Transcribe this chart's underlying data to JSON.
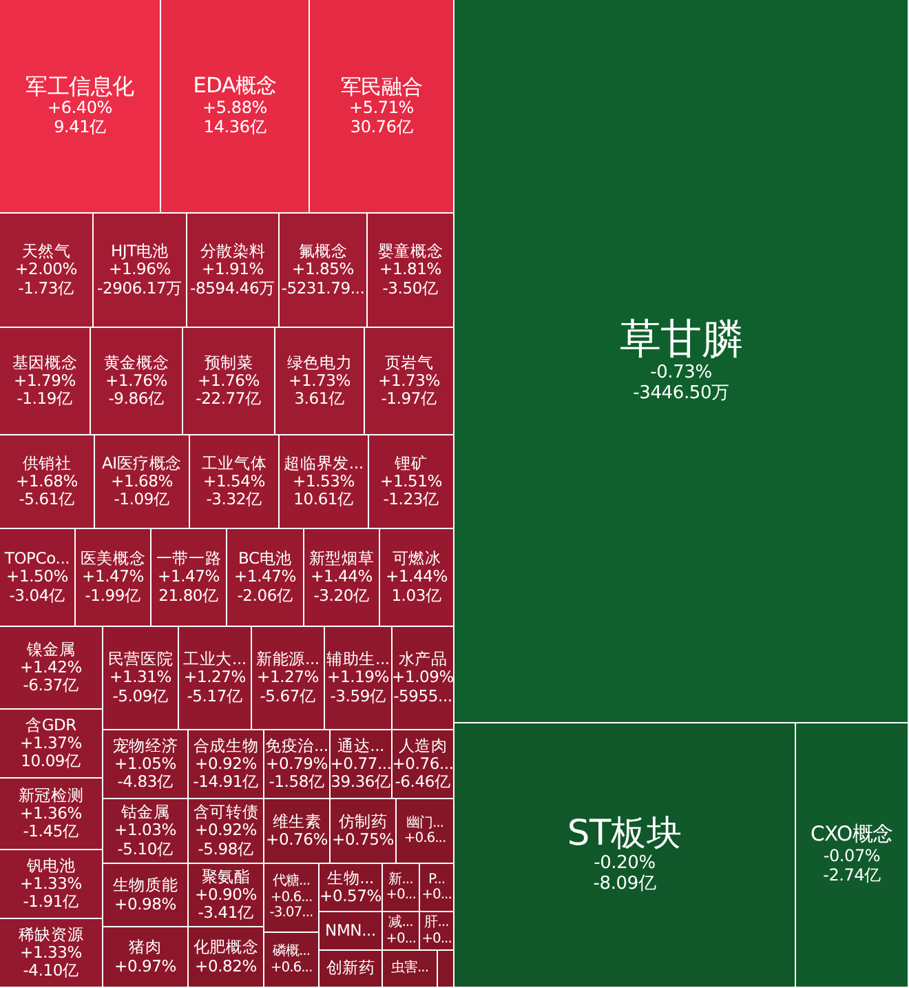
{
  "chart_data": {
    "type": "other",
    "categories": [
      "军工信息化",
      "EDA概念",
      "军民融合",
      "天然气",
      "HJT电池",
      "分散染料",
      "氟概念",
      "婴童概念",
      "基因概念",
      "黄金概念",
      "预制菜",
      "绿色电力",
      "页岩气",
      "供销社",
      "AI医疗概念",
      "工业气体",
      "超临界发...",
      "锂矿",
      "TOPCo...",
      "医美概念",
      "一带一路",
      "BC电池",
      "新型烟草",
      "可燃冰",
      "镍金属",
      "含GDR",
      "新冠检测",
      "钒电池",
      "稀缺资源",
      "民营医院",
      "工业大...",
      "新能源...",
      "辅助生...",
      "水产品",
      "宠物经济",
      "合成生物",
      "免疫治...",
      "通达...",
      "人造肉",
      "钴金属",
      "生物质能",
      "猪肉",
      "含可转债",
      "聚氨酯",
      "化肥概念",
      "维生素",
      "仿制药",
      "幽门...",
      "代糖...",
      "磷概...",
      "生物...",
      "NMN...",
      "创新药",
      "新...",
      "P...",
      "减...",
      "肝...",
      "虫害...",
      null,
      "草甘膦",
      "ST板块",
      "CXO概念"
    ],
    "values": [
      6.4,
      5.88,
      5.71,
      2.0,
      1.96,
      1.91,
      1.85,
      1.81,
      1.79,
      1.76,
      1.76,
      1.73,
      1.73,
      1.68,
      1.68,
      1.54,
      1.53,
      1.51,
      1.5,
      1.47,
      1.47,
      1.47,
      1.44,
      1.44,
      1.42,
      1.37,
      1.36,
      1.33,
      1.33,
      1.31,
      1.27,
      1.27,
      1.19,
      1.09,
      1.05,
      0.92,
      0.79,
      null,
      null,
      1.03,
      0.98,
      0.97,
      0.92,
      0.9,
      0.82,
      0.76,
      0.75,
      null,
      null,
      null,
      0.57,
      null,
      null,
      null,
      null,
      null,
      null,
      null,
      null,
      -0.73,
      -0.2,
      -0.07
    ],
    "value_labels": [
      "+6.40%\n9.41亿",
      "+5.88%\n14.36亿",
      "+5.71%\n30.76亿",
      "+2.00%\n-1.73亿",
      "+1.96%\n-2906.17万",
      "+1.91%\n-8594.46万",
      "+1.85%\n-5231.79...",
      "+1.81%\n-3.50亿",
      "+1.79%\n-1.19亿",
      "+1.76%\n-9.86亿",
      "+1.76%\n-22.77亿",
      "+1.73%\n3.61亿",
      "+1.73%\n-1.97亿",
      "+1.68%\n-5.61亿",
      "+1.68%\n-1.09亿",
      "+1.54%\n-3.32亿",
      "+1.53%\n10.61亿",
      "+1.51%\n-1.23亿",
      "+1.50%\n-3.04亿",
      "+1.47%\n-1.99亿",
      "+1.47%\n21.80亿",
      "+1.47%\n-2.06亿",
      "+1.44%\n-3.20亿",
      "+1.44%\n1.03亿",
      "+1.42%\n-6.37亿",
      "+1.37%\n10.09亿",
      "+1.36%\n-1.45亿",
      "+1.33%\n-1.91亿",
      "+1.33%\n-4.10亿",
      "+1.31%\n-5.09亿",
      "+1.27%\n-5.17亿",
      "+1.27%\n-5.67亿",
      "+1.19%\n-3.59亿",
      "+1.09%\n-5955...",
      "+1.05%\n-4.83亿",
      "+0.92%\n-14.91亿",
      "+0.79%\n-1.58亿",
      "+0.77...\n39.36亿",
      "+0.76...\n-6.46亿",
      "+1.03%\n-5.10亿",
      "+0.98%",
      "+0.97%",
      "+0.92%\n-5.98亿",
      "+0.90%\n-3.41亿",
      "+0.82%",
      "+0.76%",
      "+0.75%",
      "+0.6...",
      "+0.6...\n-3.07...",
      "+0.6...",
      "+0.57%",
      null,
      null,
      "+0...",
      "+0...",
      "+0...",
      "+0...",
      null,
      null,
      "-0.73%\n-3446.50万",
      "-0.20%\n-8.09亿",
      "-0.07%\n-2.74亿"
    ],
    "colors": [
      "#db2a42",
      "#d82840",
      "#d6273f",
      "#a11c33",
      "#a01b33",
      "#9f1b32",
      "#9e1b32",
      "#9d1a31",
      "#9e1b32",
      "#9d1a31",
      "#9c1a31",
      "#9b1a30",
      "#9b1a30",
      "#9b1a30",
      "#9a1a30",
      "#981a2f",
      "#981a2f",
      "#97192f",
      "#97192f",
      "#96192e",
      "#96192e",
      "#96192e",
      "#95192e",
      "#95192e",
      "#94192e",
      "#93192d",
      "#93192d",
      "#92182d",
      "#92182d",
      "#91182d",
      "#90182c",
      "#90182c",
      "#8e182c",
      "#8c172b",
      "#8c172b",
      "#8a172a",
      "#88162a",
      "#881629",
      "#871629",
      "#8b172b",
      "#8a172a",
      "#8a172a",
      "#8a172a",
      "#891629",
      "#871629",
      "#861628",
      "#861628",
      "#851628",
      "#851628",
      "#851628",
      "#841527",
      "#841527",
      "#841527",
      "#831527",
      "#831527",
      "#831527",
      "#831527",
      "#821526",
      "#821526",
      "#0f5f2c",
      "#10582a",
      "#115a2c"
    ]
  }
}
